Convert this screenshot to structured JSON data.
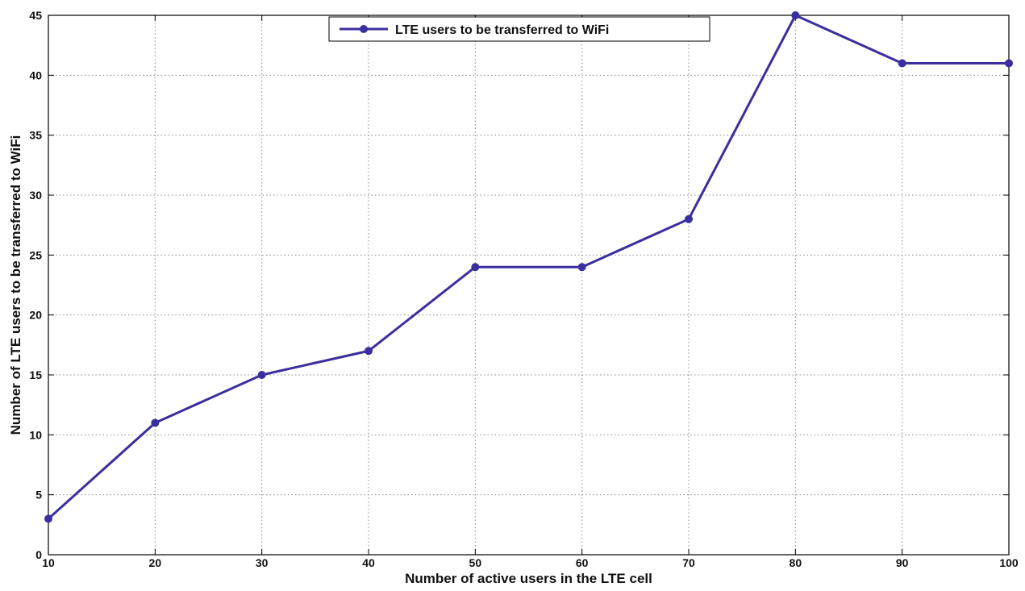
{
  "chart_data": {
    "type": "line",
    "title": "",
    "xlabel": "Number of active users in the LTE cell",
    "ylabel": "Number of LTE users to be transferred to WiFi",
    "xlim": [
      10,
      100
    ],
    "ylim": [
      0,
      45
    ],
    "x_ticks": [
      10,
      20,
      30,
      40,
      50,
      60,
      70,
      80,
      90,
      100
    ],
    "y_ticks": [
      0,
      5,
      10,
      15,
      20,
      25,
      30,
      35,
      40,
      45
    ],
    "grid": true,
    "legend_position": "top-center",
    "series": [
      {
        "name": "LTE users to be transferred to WiFi",
        "color": "#3b2fa0",
        "marker": "circle",
        "x": [
          10,
          20,
          30,
          40,
          50,
          60,
          70,
          80,
          90,
          100
        ],
        "y": [
          3,
          11,
          15,
          17,
          24,
          24,
          28,
          45,
          41,
          41
        ]
      }
    ]
  }
}
